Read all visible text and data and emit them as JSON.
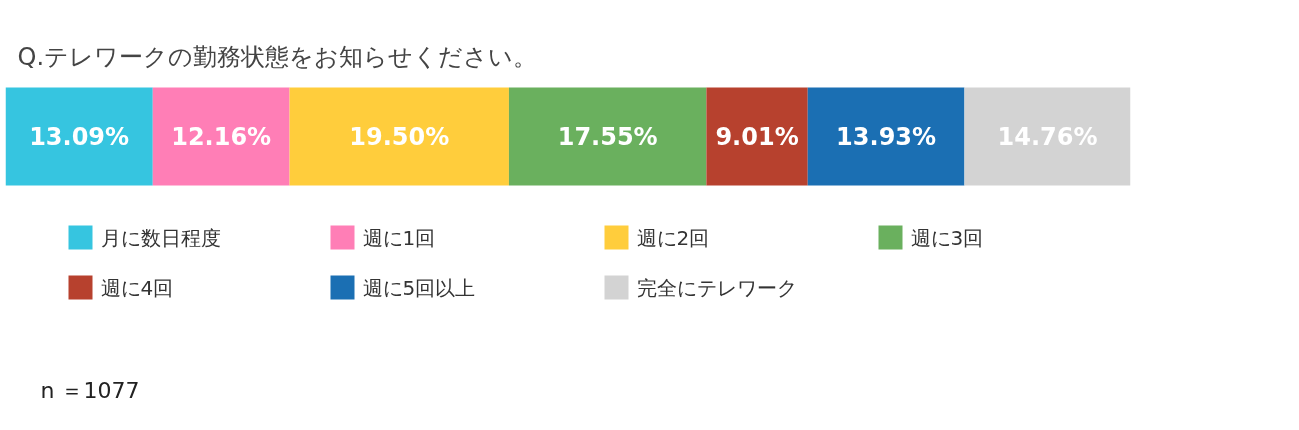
{
  "chart_data": {
    "type": "bar",
    "orientation": "horizontal",
    "stacked": true,
    "title": "Q.テレワークの勤務状態をお知らせください。",
    "categories": [
      null
    ],
    "legend": "bottom",
    "grid": false,
    "tick_labels": false,
    "series": [
      {
        "name": "月に数日程度",
        "color": "#36c5e0",
        "values": [
          13.09
        ],
        "value_labels": [
          "13.09%"
        ]
      },
      {
        "name": "週に1回",
        "color": "#ff7eb6",
        "values": [
          12.16
        ],
        "value_labels": [
          "12.16%"
        ]
      },
      {
        "name": "週に2回",
        "color": "#ffcd3c",
        "values": [
          19.5
        ],
        "value_labels": [
          "19.50%"
        ]
      },
      {
        "name": "週に3回",
        "color": "#6ab05e",
        "values": [
          17.55
        ],
        "value_labels": [
          "17.55%"
        ]
      },
      {
        "name": "週に4回",
        "color": "#b7412e",
        "values": [
          9.01
        ],
        "value_labels": [
          "9.01%"
        ]
      },
      {
        "name": "週に5回以上",
        "color": "#1b6fb3",
        "values": [
          13.93
        ],
        "value_labels": [
          "13.93%"
        ]
      },
      {
        "name": "完全にテレワーク",
        "color": "#d3d3d3",
        "values": [
          14.76
        ],
        "value_labels": [
          "14.76%"
        ]
      }
    ],
    "annotations": [
      "n ＝1077"
    ]
  }
}
